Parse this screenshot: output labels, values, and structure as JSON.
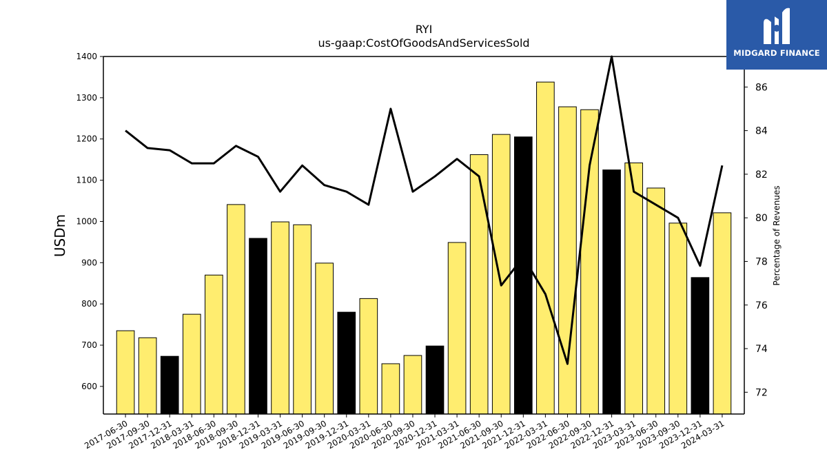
{
  "chart_data": {
    "type": "bar",
    "title": "RYI",
    "subtitle": "us-gaap:CostOfGoodsAndServicesSold",
    "ylabel": "USDm",
    "y2label": "Percentage of Revenues",
    "ylim": [
      533,
      1400
    ],
    "y2lim": [
      71,
      87.4
    ],
    "yticks": [
      600,
      700,
      800,
      900,
      1000,
      1100,
      1200,
      1300,
      1400
    ],
    "y2ticks": [
      72,
      74,
      76,
      78,
      80,
      82,
      84,
      86
    ],
    "categories": [
      "2017-06-30",
      "2017-09-30",
      "2017-12-31",
      "2018-03-31",
      "2018-06-30",
      "2018-09-30",
      "2018-12-31",
      "2019-03-31",
      "2019-06-30",
      "2019-09-30",
      "2019-12-31",
      "2020-03-31",
      "2020-06-30",
      "2020-09-30",
      "2020-12-31",
      "2021-03-31",
      "2021-06-30",
      "2021-09-30",
      "2021-12-31",
      "2022-03-31",
      "2022-06-30",
      "2022-09-30",
      "2022-12-31",
      "2023-03-31",
      "2023-06-30",
      "2023-09-30",
      "2023-12-31",
      "2024-03-31"
    ],
    "series": [
      {
        "kind": "bar",
        "values": [
          735,
          718,
          673,
          775,
          870,
          1041,
          959,
          999,
          992,
          899,
          780,
          813,
          655,
          675,
          698,
          949,
          1162,
          1211,
          1205,
          1338,
          1278,
          1271,
          1125,
          1142,
          1081,
          996,
          864,
          1021
        ],
        "color": "#ffed6f",
        "highlight_color": "#000000",
        "highlight_indices": [
          2,
          6,
          10,
          14,
          18,
          22,
          26
        ]
      },
      {
        "kind": "line",
        "axis": "right",
        "values": [
          84.0,
          83.2,
          83.1,
          82.5,
          82.5,
          83.3,
          82.8,
          81.2,
          82.4,
          81.5,
          81.2,
          80.6,
          85.0,
          81.2,
          81.9,
          82.7,
          81.9,
          76.9,
          78.2,
          76.5,
          73.3,
          82.4,
          87.4,
          81.2,
          80.6,
          80.0,
          77.8,
          82.4
        ],
        "color": "#000000"
      }
    ],
    "grid": false,
    "legend": "none"
  },
  "logo": {
    "text": "MIDGARD FINANCE",
    "background": "#2a5aa8"
  }
}
